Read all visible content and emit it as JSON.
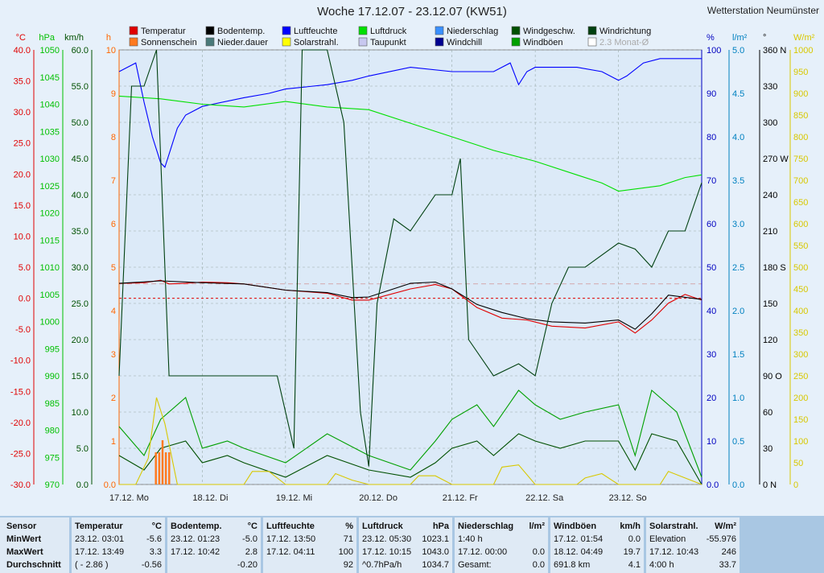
{
  "header": {
    "title": "Woche 17.12.07 - 23.12.07 (KW51)",
    "station": "Wetterstation Neumünster"
  },
  "legend": [
    {
      "label": "Temperatur",
      "color": "#e00000"
    },
    {
      "label": "Sonnenschein",
      "color": "#ff7a20"
    },
    {
      "label": "Bodentemp.",
      "color": "#000000"
    },
    {
      "label": "Nieder.dauer",
      "color": "#4a7a7a"
    },
    {
      "label": "Luftfeuchte",
      "color": "#0000ff"
    },
    {
      "label": "Solarstrahl.",
      "color": "#ffff00"
    },
    {
      "label": "Luftdruck",
      "color": "#00e000"
    },
    {
      "label": "Taupunkt",
      "color": "#c8c8f0"
    },
    {
      "label": "Niederschlag",
      "color": "#3a90ff"
    },
    {
      "label": "Windchill",
      "color": "#000090"
    },
    {
      "label": "Windgeschw.",
      "color": "#005000"
    },
    {
      "label": "Windböen",
      "color": "#00a000"
    },
    {
      "label": "Windrichtung",
      "color": "#004010"
    },
    {
      "label": "2.3 Monat-Ø",
      "color": "#ffffff"
    }
  ],
  "axes": {
    "temp": {
      "unit": "°C",
      "ticks": [
        "40.0",
        "35.0",
        "30.0",
        "25.0",
        "20.0",
        "15.0",
        "10.0",
        "5.0",
        "0.0",
        "-5.0",
        "-10.0",
        "-15.0",
        "-20.0",
        "-25.0",
        "-30.0"
      ],
      "color": "#e00000"
    },
    "press": {
      "unit": "hPa",
      "ticks": [
        "1050",
        "1045",
        "1040",
        "1035",
        "1030",
        "1025",
        "1020",
        "1015",
        "1010",
        "1005",
        "1000",
        "995",
        "990",
        "985",
        "980",
        "975",
        "970"
      ],
      "color": "#00c000"
    },
    "wind": {
      "unit": "km/h",
      "ticks": [
        "60.0",
        "55.0",
        "50.0",
        "45.0",
        "40.0",
        "35.0",
        "30.0",
        "25.0",
        "20.0",
        "15.0",
        "10.0",
        "5.0",
        "0.0"
      ],
      "color": "#005000"
    },
    "hours": {
      "unit": "h",
      "ticks": [
        "10",
        "9",
        "8",
        "7",
        "6",
        "5",
        "4",
        "3",
        "2",
        "1",
        "0.0"
      ],
      "color": "#ff6600"
    },
    "hum": {
      "unit": "%",
      "ticks": [
        "100",
        "90",
        "80",
        "70",
        "60",
        "50",
        "40",
        "30",
        "20",
        "10",
        "0.0"
      ],
      "color": "#0000c0"
    },
    "rain": {
      "unit": "l/m²",
      "ticks": [
        "5.0",
        "4.5",
        "4.0",
        "3.5",
        "3.0",
        "2.5",
        "2.0",
        "1.5",
        "1.0",
        "0.5",
        "0.0"
      ],
      "color": "#0080c0"
    },
    "dir": {
      "unit": "°",
      "ticks": [
        "360 N",
        "330",
        "300",
        "270 W",
        "240",
        "210",
        "180 S",
        "150",
        "120",
        "90 O",
        "60",
        "30",
        "0 N"
      ],
      "color": "#000000"
    },
    "solar": {
      "unit": "W/m²",
      "ticks": [
        "1000",
        "950",
        "900",
        "850",
        "800",
        "750",
        "700",
        "650",
        "600",
        "550",
        "500",
        "450",
        "400",
        "350",
        "300",
        "250",
        "200",
        "150",
        "100",
        "50",
        "0"
      ],
      "color": "#d8c800"
    }
  },
  "days": [
    "17.12. Mo",
    "18.12. Di",
    "19.12. Mi",
    "20.12. Do",
    "21.12. Fr",
    "22.12. Sa",
    "23.12. So"
  ],
  "chart_data": {
    "type": "line",
    "title": "Woche 17.12.07 - 23.12.07 (KW51)",
    "x_unit": "days (17.12.07 = 0)",
    "series": [
      {
        "name": "Temperatur",
        "unit": "°C",
        "x": [
          0,
          0.3,
          0.5,
          0.6,
          0.8,
          1.0,
          1.3,
          1.5,
          2.0,
          2.5,
          2.8,
          3.0,
          3.5,
          3.8,
          4.0,
          4.3,
          4.6,
          4.9,
          5.2,
          5.6,
          6.0,
          6.2,
          6.4,
          6.6,
          6.8,
          7.0
        ],
        "values": [
          2.4,
          2.5,
          2.9,
          2.3,
          2.4,
          2.6,
          2.5,
          2.3,
          1.3,
          0.8,
          -0.3,
          -0.3,
          1.5,
          2.2,
          1.5,
          -1.5,
          -3.2,
          -3.5,
          -4.5,
          -4.8,
          -3.8,
          -5.6,
          -3.5,
          -0.8,
          0.6,
          -0.3
        ]
      },
      {
        "name": "Bodentemp.",
        "unit": "°C",
        "x": [
          0,
          0.5,
          1.0,
          1.5,
          2.0,
          2.5,
          2.8,
          3.0,
          3.5,
          3.8,
          4.0,
          4.3,
          4.6,
          4.9,
          5.2,
          5.6,
          6.0,
          6.2,
          6.4,
          6.6,
          7.0
        ],
        "values": [
          2.4,
          2.8,
          2.5,
          2.3,
          1.3,
          0.9,
          0.1,
          0.2,
          2.4,
          2.6,
          1.5,
          -1.0,
          -2.3,
          -3.3,
          -3.8,
          -4.0,
          -3.5,
          -5.0,
          -2.5,
          0.5,
          -0.2
        ]
      },
      {
        "name": "Luftfeuchte",
        "unit": "%",
        "x": [
          0,
          0.2,
          0.3,
          0.4,
          0.5,
          0.55,
          0.7,
          0.8,
          1.0,
          1.5,
          1.8,
          2.0,
          2.5,
          2.8,
          3.0,
          3.5,
          4.0,
          4.5,
          4.7,
          4.8,
          4.9,
          5.0,
          5.5,
          5.8,
          6.0,
          6.1,
          6.3,
          6.5,
          7.0
        ],
        "values": [
          95,
          97,
          88,
          80,
          74,
          73,
          82,
          85,
          87,
          89,
          90,
          91,
          92,
          93,
          94,
          96,
          95,
          95,
          97,
          92,
          95,
          96,
          96,
          95,
          93,
          94,
          97,
          98,
          98
        ]
      },
      {
        "name": "Luftdruck",
        "unit": "hPa",
        "x": [
          0,
          0.5,
          1.0,
          1.5,
          2.0,
          2.5,
          3.0,
          3.5,
          4.0,
          4.5,
          5.0,
          5.5,
          5.8,
          6.0,
          6.5,
          6.8,
          7.0
        ],
        "values": [
          1041.5,
          1041.0,
          1040.0,
          1039.5,
          1040.5,
          1039.5,
          1039.0,
          1036.5,
          1034.0,
          1031.5,
          1029.5,
          1027.0,
          1025.5,
          1024.0,
          1025.0,
          1026.5,
          1027.0
        ]
      },
      {
        "name": "Windböen",
        "unit": "km/h",
        "x": [
          0,
          0.3,
          0.5,
          0.8,
          1.0,
          1.3,
          1.5,
          2.0,
          2.5,
          3.0,
          3.5,
          3.8,
          4.0,
          4.3,
          4.5,
          4.8,
          5.0,
          5.3,
          5.6,
          6.0,
          6.2,
          6.4,
          6.7,
          7.0
        ],
        "values": [
          8,
          4,
          9,
          12,
          5,
          6,
          5,
          3,
          7,
          4,
          2,
          6,
          9,
          11,
          8,
          13,
          11,
          9,
          10,
          11,
          4,
          13,
          10,
          1
        ]
      },
      {
        "name": "Windgeschw.",
        "unit": "km/h",
        "x": [
          0,
          0.3,
          0.5,
          0.8,
          1.0,
          1.3,
          1.5,
          2.0,
          2.5,
          3.0,
          3.5,
          3.8,
          4.0,
          4.3,
          4.5,
          4.8,
          5.0,
          5.3,
          5.6,
          6.0,
          6.2,
          6.4,
          6.7,
          7.0
        ],
        "values": [
          4,
          2,
          5,
          6,
          3,
          4,
          3,
          1,
          4,
          2,
          1,
          3,
          5,
          6,
          4,
          7,
          6,
          5,
          6,
          6,
          2,
          7,
          6,
          0
        ]
      },
      {
        "name": "Windrichtung",
        "unit": "°",
        "x": [
          0,
          0.15,
          0.3,
          0.45,
          0.6,
          1.0,
          1.4,
          1.9,
          2.1,
          2.2,
          2.3,
          2.5,
          2.7,
          2.8,
          2.9,
          3.0,
          3.1,
          3.3,
          3.5,
          3.8,
          4.0,
          4.1,
          4.2,
          4.5,
          4.8,
          5.0,
          5.2,
          5.4,
          5.6,
          6.0,
          6.2,
          6.4,
          6.6,
          6.8,
          7.0
        ],
        "values": [
          90,
          330,
          330,
          360,
          90,
          90,
          90,
          90,
          30,
          360,
          360,
          360,
          300,
          180,
          60,
          15,
          150,
          220,
          210,
          240,
          240,
          270,
          120,
          90,
          100,
          90,
          150,
          180,
          180,
          200,
          195,
          180,
          210,
          210,
          250
        ]
      },
      {
        "name": "Solarstrahl.",
        "unit": "W/m²",
        "x": [
          0,
          0.2,
          0.35,
          0.45,
          0.55,
          0.7,
          1.0,
          1.5,
          1.6,
          1.8,
          2.0,
          2.5,
          2.6,
          2.8,
          3.0,
          3.5,
          3.6,
          3.8,
          4.0,
          4.5,
          4.6,
          4.8,
          5.0,
          5.5,
          5.6,
          5.8,
          6.0,
          6.5,
          6.6,
          6.8,
          7.0
        ],
        "values": [
          0,
          0,
          60,
          200,
          140,
          0,
          0,
          0,
          30,
          30,
          0,
          0,
          25,
          10,
          0,
          0,
          20,
          20,
          0,
          0,
          40,
          45,
          0,
          0,
          15,
          25,
          0,
          0,
          30,
          15,
          0
        ]
      }
    ]
  },
  "table": {
    "header": {
      "sensor": "Sensor"
    },
    "rowlabels": [
      "MinWert",
      "MaxWert",
      "Durchschnitt"
    ],
    "columns": [
      {
        "name": "Temperatur",
        "unit": "°C",
        "rows": [
          [
            "23.12.  03:01",
            "-5.6"
          ],
          [
            "17.12.  13:49",
            "3.3"
          ],
          [
            "( - 2.86 )",
            "-0.56"
          ]
        ]
      },
      {
        "name": "Bodentemp.",
        "unit": "°C",
        "rows": [
          [
            "23.12.  01:23",
            "-5.0"
          ],
          [
            "17.12.  10:42",
            "2.8"
          ],
          [
            "",
            "-0.20"
          ]
        ]
      },
      {
        "name": "Luftfeuchte",
        "unit": "%",
        "rows": [
          [
            "17.12.  13:50",
            "71"
          ],
          [
            "17.12.  04:11",
            "100"
          ],
          [
            "",
            "92"
          ]
        ]
      },
      {
        "name": "Luftdruck",
        "unit": "hPa",
        "rows": [
          [
            "23.12.  05:30",
            "1023.1"
          ],
          [
            "17.12.  10:15",
            "1043.0"
          ],
          [
            "^0.7hPa/h",
            "1034.7"
          ]
        ]
      },
      {
        "name": "Niederschlag",
        "unit": "l/m²",
        "rows": [
          [
            "1:40 h",
            ""
          ],
          [
            "17.12.  00:00",
            "0.0"
          ],
          [
            "Gesamt:",
            "0.0"
          ]
        ]
      },
      {
        "name": "Windböen",
        "unit": "km/h",
        "rows": [
          [
            "17.12.  01:54",
            "0.0"
          ],
          [
            "18.12.  04:49",
            "19.7"
          ],
          [
            "691.8 km",
            "4.1"
          ]
        ]
      },
      {
        "name": "Solarstrahl.",
        "unit": "W/m²",
        "rows": [
          [
            "Elevation",
            "-55.976"
          ],
          [
            "17.12.  10:43",
            "246"
          ],
          [
            "4:00 h",
            "33.7"
          ]
        ]
      }
    ]
  }
}
